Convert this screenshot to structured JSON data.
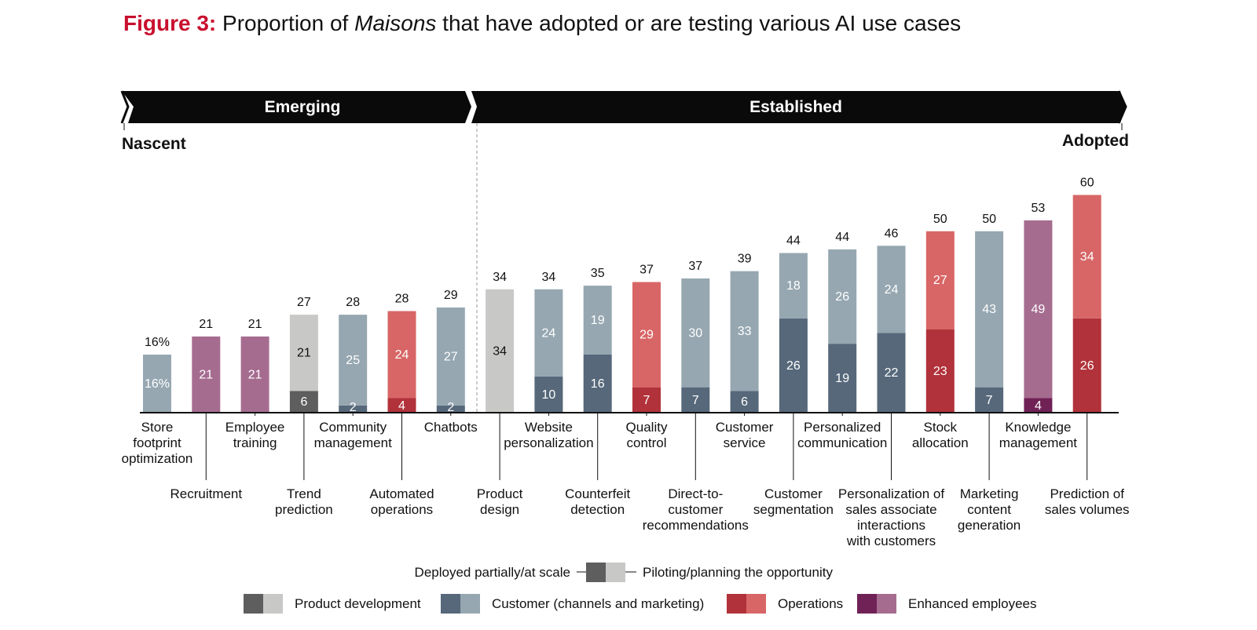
{
  "figure": {
    "label": "Figure 3:",
    "title_pre": "Proportion of ",
    "title_em": "Maisons",
    "title_post": " that have adopted or are testing various AI use cases"
  },
  "colors": {
    "product_dark": "#5e5e5e",
    "product_light": "#c8c8c6",
    "customer_dark": "#56687a",
    "customer_light": "#96a7b1",
    "operations_dark": "#b1323a",
    "operations_light": "#d86666",
    "employees_dark": "#702256",
    "employees_light": "#a66c90",
    "banner": "#0a0a0a"
  },
  "chart_data": {
    "type": "bar",
    "stacked": true,
    "banner": {
      "left": "Emerging",
      "right": "Established"
    },
    "ends": {
      "left": "Nascent",
      "right": "Adopted"
    },
    "categories": [
      {
        "name": [
          "Store",
          "footprint",
          "optimization"
        ],
        "group": "customer",
        "deployed": null,
        "piloting": "16%",
        "total": "16%",
        "label_row": 1
      },
      {
        "name": [
          "Recruitment"
        ],
        "group": "employees",
        "deployed": null,
        "piloting": 21,
        "total": 21,
        "label_row": 2
      },
      {
        "name": [
          "Employee",
          "training"
        ],
        "group": "employees",
        "deployed": null,
        "piloting": 21,
        "total": 21,
        "label_row": 1
      },
      {
        "name": [
          "Trend",
          "prediction"
        ],
        "group": "product",
        "deployed": 6,
        "piloting": 21,
        "total": 27,
        "label_row": 2
      },
      {
        "name": [
          "Community",
          "management"
        ],
        "group": "customer",
        "deployed": 2,
        "piloting": 25,
        "total": 28,
        "label_row": 1
      },
      {
        "name": [
          "Automated",
          "operations"
        ],
        "group": "operations",
        "deployed": 4,
        "piloting": 24,
        "total": 28,
        "label_row": 2
      },
      {
        "name": [
          "Chatbots"
        ],
        "group": "customer",
        "deployed": 2,
        "piloting": 27,
        "total": 29,
        "label_row": 1
      },
      {
        "name": [
          "Product",
          "design"
        ],
        "group": "product",
        "deployed": null,
        "piloting": 34,
        "total": 34,
        "label_row": 2
      },
      {
        "name": [
          "Website",
          "personalization"
        ],
        "group": "customer",
        "deployed": 10,
        "piloting": 24,
        "total": 34,
        "label_row": 1
      },
      {
        "name": [
          "Counterfeit",
          "detection"
        ],
        "group": "customer",
        "deployed": 16,
        "piloting": 19,
        "total": 35,
        "label_row": 2
      },
      {
        "name": [
          "Quality",
          "control"
        ],
        "group": "operations",
        "deployed": 7,
        "piloting": 29,
        "total": 37,
        "label_row": 1
      },
      {
        "name": [
          "Direct-to-",
          "customer",
          "recommendations"
        ],
        "group": "customer",
        "deployed": 7,
        "piloting": 30,
        "total": 37,
        "label_row": 2
      },
      {
        "name": [
          "Customer",
          "service"
        ],
        "group": "customer",
        "deployed": 6,
        "piloting": 33,
        "total": 39,
        "label_row": 1
      },
      {
        "name": [
          "Customer",
          "segmentation"
        ],
        "group": "customer",
        "deployed": 26,
        "piloting": 18,
        "total": 44,
        "label_row": 2
      },
      {
        "name": [
          "Personalized",
          "communication"
        ],
        "group": "customer",
        "deployed": 19,
        "piloting": 26,
        "total": 44,
        "label_row": 1
      },
      {
        "name": [
          "Personalization of",
          "sales associate",
          "interactions",
          "with customers"
        ],
        "group": "customer",
        "deployed": 22,
        "piloting": 24,
        "total": 46,
        "label_row": 2
      },
      {
        "name": [
          "Stock",
          "allocation"
        ],
        "group": "operations",
        "deployed": 23,
        "piloting": 27,
        "total": 50,
        "label_row": 1
      },
      {
        "name": [
          "Marketing",
          "content",
          "generation"
        ],
        "group": "customer",
        "deployed": 7,
        "piloting": 43,
        "total": 50,
        "label_row": 2
      },
      {
        "name": [
          "Knowledge",
          "management"
        ],
        "group": "employees",
        "deployed": 4,
        "piloting": 49,
        "total": 53,
        "label_row": 1
      },
      {
        "name": [
          "Prediction of",
          "sales volumes"
        ],
        "group": "operations",
        "deployed": 26,
        "piloting": 34,
        "total": 60,
        "label_row": 2
      }
    ],
    "legend_status": {
      "deployed": "Deployed partially/at scale",
      "piloting": "Piloting/planning the opportunity"
    },
    "legend_groups": [
      {
        "key": "product",
        "label": "Product development"
      },
      {
        "key": "customer",
        "label": "Customer (channels and marketing)"
      },
      {
        "key": "operations",
        "label": "Operations"
      },
      {
        "key": "employees",
        "label": "Enhanced employees"
      }
    ]
  }
}
